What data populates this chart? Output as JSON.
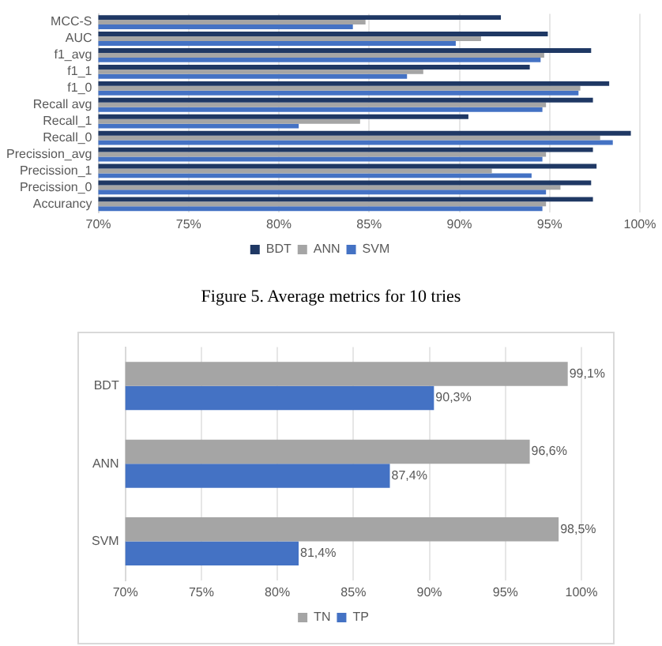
{
  "chart_data": [
    {
      "type": "bar",
      "orientation": "horizontal",
      "categories": [
        "MCC-S",
        "AUC",
        "f1_avg",
        "f1_1",
        "f1_0",
        "Recall avg",
        "Recall_1",
        "Recall_0",
        "Precission_avg",
        "Precission_1",
        "Precission_0",
        "Accurancy"
      ],
      "series": [
        {
          "name": "BDT",
          "color": "#1f3864",
          "values": [
            92.3,
            94.9,
            97.3,
            93.9,
            98.3,
            97.4,
            90.5,
            99.5,
            97.4,
            97.6,
            97.3,
            97.4
          ]
        },
        {
          "name": "ANN",
          "color": "#a5a5a5",
          "values": [
            84.8,
            91.2,
            94.7,
            88.0,
            96.7,
            94.8,
            84.5,
            97.8,
            94.8,
            91.8,
            95.6,
            94.8
          ]
        },
        {
          "name": "SVM",
          "color": "#4472c4",
          "values": [
            84.1,
            89.8,
            94.5,
            87.1,
            96.6,
            94.6,
            81.1,
            98.5,
            94.6,
            94.0,
            94.8,
            94.6
          ]
        }
      ],
      "xlim": [
        70,
        100
      ],
      "xticks": [
        {
          "value": 70,
          "label": "70%"
        },
        {
          "value": 75,
          "label": "75%"
        },
        {
          "value": 80,
          "label": "80%"
        },
        {
          "value": 85,
          "label": "85%"
        },
        {
          "value": 90,
          "label": "90%"
        },
        {
          "value": 95,
          "label": "95%"
        },
        {
          "value": 100,
          "label": "100%"
        }
      ],
      "grid": "x",
      "legend": "bottom",
      "annotations": [
        "Figure 5. Average metrics for 10 tries"
      ]
    },
    {
      "type": "bar",
      "orientation": "horizontal",
      "categories": [
        "BDT",
        "ANN",
        "SVM"
      ],
      "series": [
        {
          "name": "TN",
          "color": "#a5a5a5",
          "values": [
            99.1,
            96.6,
            98.5
          ],
          "value_labels": [
            "99,1%",
            "96,6%",
            "98,5%"
          ]
        },
        {
          "name": "TP",
          "color": "#4472c4",
          "values": [
            90.3,
            87.4,
            81.4
          ],
          "value_labels": [
            "90,3%",
            "87,4%",
            "81,4%"
          ]
        }
      ],
      "xlim": [
        70,
        100
      ],
      "xticks": [
        {
          "value": 70,
          "label": "70%"
        },
        {
          "value": 75,
          "label": "75%"
        },
        {
          "value": 80,
          "label": "80%"
        },
        {
          "value": 85,
          "label": "85%"
        },
        {
          "value": 90,
          "label": "90%"
        },
        {
          "value": 95,
          "label": "95%"
        },
        {
          "value": 100,
          "label": "100%"
        }
      ],
      "grid": "x",
      "legend": "bottom"
    }
  ]
}
